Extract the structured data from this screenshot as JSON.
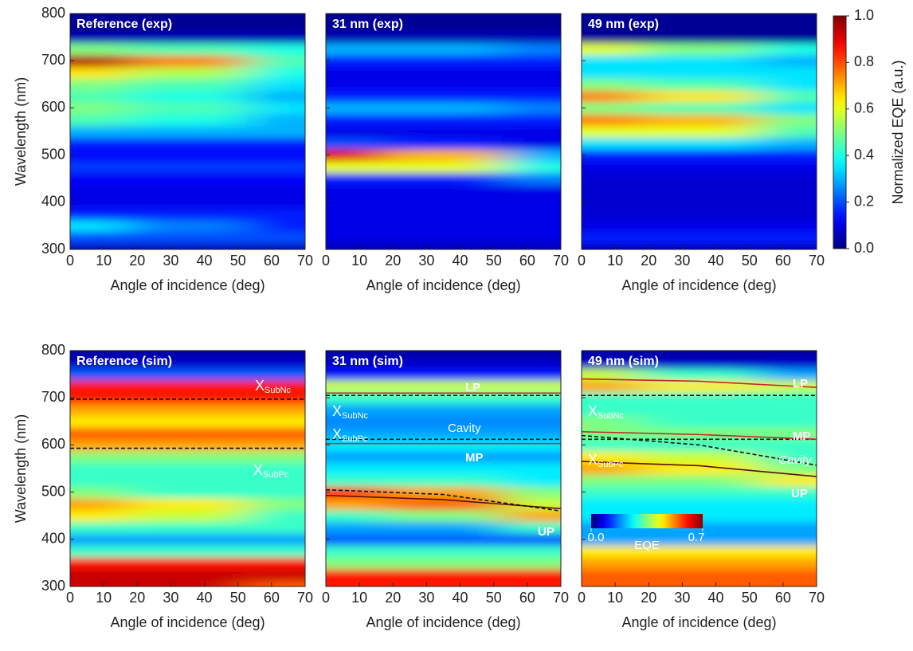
{
  "chart_data": [
    {
      "type": "heatmap",
      "title": "Reference (exp)",
      "xlabel": "Angle of incidence (deg)",
      "ylabel": "Wavelength (nm)",
      "x": [
        0,
        35,
        70
      ],
      "y": [
        300,
        325,
        350,
        375,
        400,
        425,
        450,
        475,
        500,
        525,
        550,
        575,
        600,
        625,
        650,
        675,
        700,
        725,
        750,
        775,
        800
      ],
      "z": [
        [
          0.05,
          0.05,
          0.05
        ],
        [
          0.2,
          0.2,
          0.2
        ],
        [
          0.35,
          0.25,
          0.15
        ],
        [
          0.15,
          0.15,
          0.15
        ],
        [
          0.1,
          0.1,
          0.1
        ],
        [
          0.1,
          0.1,
          0.1
        ],
        [
          0.12,
          0.12,
          0.12
        ],
        [
          0.18,
          0.18,
          0.18
        ],
        [
          0.12,
          0.12,
          0.12
        ],
        [
          0.15,
          0.15,
          0.15
        ],
        [
          0.3,
          0.3,
          0.3
        ],
        [
          0.45,
          0.4,
          0.3
        ],
        [
          0.5,
          0.45,
          0.35
        ],
        [
          0.45,
          0.4,
          0.3
        ],
        [
          0.5,
          0.45,
          0.35
        ],
        [
          0.65,
          0.55,
          0.4
        ],
        [
          0.95,
          0.75,
          0.45
        ],
        [
          0.5,
          0.45,
          0.4
        ],
        [
          0.05,
          0.05,
          0.05
        ],
        [
          0.02,
          0.02,
          0.02
        ],
        [
          0.02,
          0.02,
          0.02
        ]
      ],
      "zlim": [
        0,
        1
      ],
      "xlim": [
        0,
        70
      ],
      "ylim": [
        300,
        800
      ],
      "xticks": [
        0,
        10,
        20,
        30,
        40,
        50,
        60,
        70
      ],
      "yticks": [
        300,
        400,
        500,
        600,
        700,
        800
      ],
      "lines": []
    },
    {
      "type": "heatmap",
      "title": "31 nm (exp)",
      "xlabel": "Angle of incidence (deg)",
      "x": [
        0,
        35,
        70
      ],
      "y": [
        300,
        325,
        350,
        375,
        400,
        425,
        450,
        475,
        500,
        525,
        550,
        575,
        600,
        625,
        650,
        675,
        700,
        725,
        750,
        775,
        800
      ],
      "z": [
        [
          0.05,
          0.05,
          0.05
        ],
        [
          0.1,
          0.1,
          0.1
        ],
        [
          0.1,
          0.1,
          0.1
        ],
        [
          0.1,
          0.1,
          0.1
        ],
        [
          0.1,
          0.1,
          0.1
        ],
        [
          0.1,
          0.1,
          0.1
        ],
        [
          0.15,
          0.15,
          0.25
        ],
        [
          0.6,
          0.6,
          0.4
        ],
        [
          0.9,
          0.7,
          0.3
        ],
        [
          0.2,
          0.15,
          0.1
        ],
        [
          0.1,
          0.1,
          0.1
        ],
        [
          0.15,
          0.15,
          0.15
        ],
        [
          0.3,
          0.3,
          0.25
        ],
        [
          0.15,
          0.15,
          0.15
        ],
        [
          0.1,
          0.1,
          0.1
        ],
        [
          0.1,
          0.1,
          0.1
        ],
        [
          0.15,
          0.15,
          0.15
        ],
        [
          0.3,
          0.3,
          0.25
        ],
        [
          0.05,
          0.05,
          0.05
        ],
        [
          0.02,
          0.02,
          0.02
        ],
        [
          0.02,
          0.02,
          0.02
        ]
      ],
      "zlim": [
        0,
        1
      ],
      "xlim": [
        0,
        70
      ],
      "ylim": [
        300,
        800
      ],
      "xticks": [
        0,
        10,
        20,
        30,
        40,
        50,
        60,
        70
      ],
      "yticks": [
        300,
        400,
        500,
        600,
        700,
        800
      ],
      "lines": []
    },
    {
      "type": "heatmap",
      "title": "49 nm (exp)",
      "xlabel": "Angle of incidence (deg)",
      "x": [
        0,
        35,
        70
      ],
      "y": [
        300,
        325,
        350,
        375,
        400,
        425,
        450,
        475,
        500,
        525,
        550,
        575,
        600,
        625,
        650,
        675,
        700,
        725,
        750,
        775,
        800
      ],
      "z": [
        [
          0.05,
          0.05,
          0.05
        ],
        [
          0.15,
          0.15,
          0.15
        ],
        [
          0.1,
          0.1,
          0.1
        ],
        [
          0.08,
          0.08,
          0.08
        ],
        [
          0.08,
          0.08,
          0.08
        ],
        [
          0.08,
          0.08,
          0.08
        ],
        [
          0.08,
          0.08,
          0.08
        ],
        [
          0.1,
          0.1,
          0.1
        ],
        [
          0.15,
          0.15,
          0.15
        ],
        [
          0.35,
          0.35,
          0.3
        ],
        [
          0.6,
          0.6,
          0.45
        ],
        [
          0.75,
          0.7,
          0.5
        ],
        [
          0.5,
          0.45,
          0.35
        ],
        [
          0.75,
          0.65,
          0.45
        ],
        [
          0.5,
          0.45,
          0.35
        ],
        [
          0.35,
          0.35,
          0.35
        ],
        [
          0.35,
          0.35,
          0.3
        ],
        [
          0.6,
          0.5,
          0.4
        ],
        [
          0.02,
          0.02,
          0.02
        ],
        [
          0.02,
          0.02,
          0.02
        ],
        [
          0.02,
          0.02,
          0.02
        ]
      ],
      "zlim": [
        0,
        1
      ],
      "xlim": [
        0,
        70
      ],
      "ylim": [
        300,
        800
      ],
      "xticks": [
        0,
        10,
        20,
        30,
        40,
        50,
        60,
        70
      ],
      "yticks": [
        300,
        400,
        500,
        600,
        700,
        800
      ],
      "lines": [],
      "colorbar": {
        "label": "Normalized EQE (a.u.)",
        "lim": [
          0,
          1
        ],
        "ticks": [
          {
            "value": 0,
            "label": "0.0"
          },
          {
            "value": 0.2,
            "label": "0.2"
          },
          {
            "value": 0.4,
            "label": "0.4"
          },
          {
            "value": 0.6,
            "label": "0.6"
          },
          {
            "value": 0.8,
            "label": "0.8"
          },
          {
            "value": 1,
            "label": "1.0"
          }
        ]
      }
    },
    {
      "type": "heatmap",
      "title": "Reference (sim)",
      "xlabel": "Angle of incidence (deg)",
      "ylabel": "Wavelength (nm)",
      "x": [
        0,
        35,
        70
      ],
      "y": [
        300,
        325,
        350,
        375,
        400,
        425,
        450,
        475,
        500,
        525,
        550,
        575,
        600,
        625,
        650,
        675,
        700,
        725,
        750,
        775,
        800
      ],
      "z": [
        [
          0.65,
          0.65,
          0.55
        ],
        [
          0.65,
          0.65,
          0.65
        ],
        [
          0.6,
          0.6,
          0.6
        ],
        [
          0.3,
          0.3,
          0.3
        ],
        [
          0.2,
          0.2,
          0.2
        ],
        [
          0.3,
          0.3,
          0.3
        ],
        [
          0.45,
          0.4,
          0.3
        ],
        [
          0.5,
          0.45,
          0.35
        ],
        [
          0.35,
          0.3,
          0.3
        ],
        [
          0.3,
          0.3,
          0.3
        ],
        [
          0.3,
          0.3,
          0.3
        ],
        [
          0.35,
          0.35,
          0.35
        ],
        [
          0.5,
          0.5,
          0.5
        ],
        [
          0.55,
          0.55,
          0.55
        ],
        [
          0.45,
          0.45,
          0.45
        ],
        [
          0.5,
          0.5,
          0.5
        ],
        [
          0.6,
          0.6,
          0.6
        ],
        [
          0.6,
          0.6,
          0.6
        ],
        [
          0.15,
          0.15,
          0.15
        ],
        [
          0.05,
          0.05,
          0.05
        ],
        [
          0.02,
          0.02,
          0.02
        ]
      ],
      "zlim": [
        0,
        0.7
      ],
      "xlim": [
        0,
        70
      ],
      "ylim": [
        300,
        800
      ],
      "xticks": [
        0,
        10,
        20,
        30,
        40,
        50,
        60,
        70
      ],
      "yticks": [
        300,
        400,
        500,
        600,
        700,
        800
      ],
      "lines": [
        {
          "label": "X",
          "sub": "SubNc",
          "x": [
            0,
            70
          ],
          "values": [
            697,
            697
          ],
          "color": "#111111",
          "dash": true
        },
        {
          "label": "X",
          "sub": "SubPc",
          "x": [
            0,
            70
          ],
          "values": [
            593,
            593
          ],
          "color": "#111111",
          "dash": true
        }
      ]
    },
    {
      "type": "heatmap",
      "title": "31 nm (sim)",
      "xlabel": "Angle of incidence (deg)",
      "x": [
        0,
        35,
        70
      ],
      "y": [
        300,
        325,
        350,
        375,
        400,
        425,
        450,
        475,
        500,
        525,
        550,
        575,
        600,
        625,
        650,
        675,
        700,
        725,
        750,
        775,
        800
      ],
      "z": [
        [
          0.6,
          0.6,
          0.6
        ],
        [
          0.6,
          0.6,
          0.6
        ],
        [
          0.35,
          0.35,
          0.35
        ],
        [
          0.3,
          0.3,
          0.3
        ],
        [
          0.15,
          0.15,
          0.15
        ],
        [
          0.2,
          0.2,
          0.3
        ],
        [
          0.3,
          0.35,
          0.5
        ],
        [
          0.5,
          0.55,
          0.4
        ],
        [
          0.6,
          0.5,
          0.35
        ],
        [
          0.3,
          0.3,
          0.25
        ],
        [
          0.25,
          0.25,
          0.25
        ],
        [
          0.2,
          0.2,
          0.2
        ],
        [
          0.25,
          0.25,
          0.25
        ],
        [
          0.2,
          0.2,
          0.2
        ],
        [
          0.18,
          0.18,
          0.18
        ],
        [
          0.2,
          0.2,
          0.2
        ],
        [
          0.3,
          0.3,
          0.3
        ],
        [
          0.4,
          0.4,
          0.4
        ],
        [
          0.1,
          0.1,
          0.1
        ],
        [
          0.05,
          0.05,
          0.05
        ],
        [
          0.02,
          0.02,
          0.02
        ]
      ],
      "zlim": [
        0,
        0.7
      ],
      "xlim": [
        0,
        70
      ],
      "ylim": [
        300,
        800
      ],
      "xticks": [
        0,
        10,
        20,
        30,
        40,
        50,
        60,
        70
      ],
      "yticks": [
        300,
        400,
        500,
        600,
        700,
        800
      ],
      "lines": [
        {
          "label": "X",
          "sub": "SubNc",
          "x": [
            0,
            70
          ],
          "values": [
            705,
            705
          ],
          "color": "#111111",
          "dash": true
        },
        {
          "label": "X",
          "sub": "SubPc",
          "x": [
            0,
            70
          ],
          "values": [
            612,
            612
          ],
          "color": "#111111",
          "dash": true
        },
        {
          "label": "LP",
          "x": [
            0,
            35,
            70
          ],
          "values": [
            710,
            710,
            710
          ],
          "color": "#c0282d",
          "dash": false
        },
        {
          "label": "MP",
          "x": [
            0,
            35,
            70
          ],
          "values": [
            603,
            603,
            603
          ],
          "color": "#c0282d",
          "dash": false
        },
        {
          "label": "UP",
          "x": [
            0,
            35,
            70
          ],
          "values": [
            493,
            484,
            465
          ],
          "color": "#5a1010",
          "dash": false
        },
        {
          "label": "Cavity",
          "x": [
            0,
            35,
            70
          ],
          "values": [
            505,
            495,
            460
          ],
          "color": "#111111",
          "dash": true
        }
      ]
    },
    {
      "type": "heatmap",
      "title": "49 nm (sim)",
      "xlabel": "Angle of incidence (deg)",
      "x": [
        0,
        35,
        70
      ],
      "y": [
        300,
        325,
        350,
        375,
        400,
        425,
        450,
        475,
        500,
        525,
        550,
        575,
        600,
        625,
        650,
        675,
        700,
        725,
        750,
        775,
        800
      ],
      "z": [
        [
          0.55,
          0.55,
          0.55
        ],
        [
          0.55,
          0.55,
          0.55
        ],
        [
          0.5,
          0.5,
          0.5
        ],
        [
          0.45,
          0.45,
          0.45
        ],
        [
          0.2,
          0.2,
          0.2
        ],
        [
          0.2,
          0.2,
          0.2
        ],
        [
          0.25,
          0.25,
          0.25
        ],
        [
          0.25,
          0.25,
          0.25
        ],
        [
          0.3,
          0.3,
          0.3
        ],
        [
          0.35,
          0.35,
          0.45
        ],
        [
          0.5,
          0.45,
          0.35
        ],
        [
          0.45,
          0.4,
          0.3
        ],
        [
          0.3,
          0.3,
          0.3
        ],
        [
          0.35,
          0.35,
          0.35
        ],
        [
          0.35,
          0.3,
          0.3
        ],
        [
          0.3,
          0.3,
          0.3
        ],
        [
          0.3,
          0.3,
          0.3
        ],
        [
          0.5,
          0.45,
          0.4
        ],
        [
          0.4,
          0.3,
          0.2
        ],
        [
          0.05,
          0.05,
          0.05
        ],
        [
          0.02,
          0.02,
          0.02
        ]
      ],
      "zlim": [
        0,
        0.7
      ],
      "xlim": [
        0,
        70
      ],
      "ylim": [
        300,
        800
      ],
      "xticks": [
        0,
        10,
        20,
        30,
        40,
        50,
        60,
        70
      ],
      "yticks": [
        300,
        400,
        500,
        600,
        700,
        800
      ],
      "lines": [
        {
          "label": "X",
          "sub": "SubNc",
          "x": [
            0,
            70
          ],
          "values": [
            705,
            705
          ],
          "color": "#111111",
          "dash": true
        },
        {
          "label": "X",
          "sub": "SubPc",
          "x": [
            0,
            70
          ],
          "values": [
            612,
            612
          ],
          "color": "#111111",
          "dash": true
        },
        {
          "label": "LP",
          "x": [
            0,
            35,
            70
          ],
          "values": [
            740,
            735,
            722
          ],
          "color": "#c0282d",
          "dash": false
        },
        {
          "label": "MP",
          "x": [
            0,
            35,
            70
          ],
          "values": [
            628,
            622,
            612
          ],
          "color": "#c0282d",
          "dash": false
        },
        {
          "label": "UP",
          "x": [
            0,
            35,
            70
          ],
          "values": [
            565,
            556,
            533
          ],
          "color": "#5a1010",
          "dash": false
        },
        {
          "label": "Cavity",
          "x": [
            0,
            35,
            70
          ],
          "values": [
            620,
            600,
            557
          ],
          "color": "#111111",
          "dash": true
        }
      ],
      "colorbar": {
        "label": "EQE",
        "lim": [
          0,
          0.7
        ],
        "ticks": [
          {
            "value": 0,
            "label": "0.0"
          },
          {
            "value": 0.7,
            "label": "0.7"
          }
        ]
      }
    }
  ]
}
